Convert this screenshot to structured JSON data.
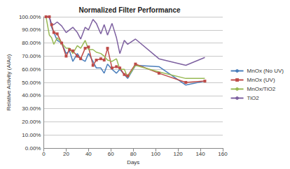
{
  "chart_data": {
    "type": "line",
    "title": "Normalized Filter Performance",
    "x_label": "Days",
    "y_label": "Relative Activity (A/Ao)",
    "x": [
      2,
      5,
      7,
      9,
      12,
      16,
      20,
      23,
      26,
      30,
      33,
      37,
      40,
      44,
      47,
      51,
      54,
      57,
      61,
      65,
      68,
      72,
      75,
      82,
      103,
      127,
      144
    ],
    "series": [
      {
        "name": "MnOx (No UV)",
        "color": "#4a7ebb",
        "marker": "none",
        "values": [
          100,
          100,
          92,
          88,
          82,
          80,
          72,
          74,
          66,
          72,
          68,
          66,
          72,
          66,
          61,
          61,
          57,
          64,
          60,
          57,
          60,
          56,
          53,
          63,
          62,
          48,
          51
        ]
      },
      {
        "name": "MnOx (UV)",
        "color": "#be4b48",
        "marker": "square",
        "values": [
          100,
          100,
          94,
          88,
          87,
          80,
          70,
          75,
          74,
          70,
          68,
          76,
          77,
          63,
          67,
          68,
          67,
          76,
          61,
          62,
          61,
          56,
          55,
          64,
          57,
          50,
          51
        ]
      },
      {
        "name": "MnOx/TiO2",
        "color": "#98b954",
        "marker": "none",
        "values": [
          100,
          86,
          84,
          79,
          84,
          80,
          76,
          76,
          72,
          78,
          76,
          82,
          75,
          75,
          73,
          72,
          70,
          67,
          66,
          68,
          60,
          60,
          54,
          63,
          58,
          53,
          53
        ]
      },
      {
        "name": "TiO2",
        "color": "#7d60a0",
        "marker": "none",
        "values": [
          100,
          100,
          94,
          94,
          96,
          93,
          88,
          90,
          92,
          88,
          83,
          92,
          90,
          98,
          95,
          87,
          94,
          86,
          95,
          84,
          72,
          82,
          79,
          83,
          68,
          63,
          69
        ]
      }
    ],
    "xlim": [
      0,
      160
    ],
    "xticks": [
      0,
      20,
      40,
      60,
      80,
      100,
      120,
      140,
      160
    ],
    "ylim": [
      0,
      100
    ],
    "yticks": [
      {
        "value": 0,
        "label": "0.00%"
      },
      {
        "value": 10,
        "label": "10.00%"
      },
      {
        "value": 20,
        "label": "20.00%"
      },
      {
        "value": 30,
        "label": "30.00%"
      },
      {
        "value": 40,
        "label": "40.00%"
      },
      {
        "value": 50,
        "label": "50.00%"
      },
      {
        "value": 60,
        "label": "60.00%"
      },
      {
        "value": 70,
        "label": "70.00%"
      },
      {
        "value": 80,
        "label": "80.00%"
      },
      {
        "value": 90,
        "label": "90.00%"
      },
      {
        "value": 100,
        "label": "100.00%"
      }
    ],
    "grid": true,
    "legend": "right"
  }
}
